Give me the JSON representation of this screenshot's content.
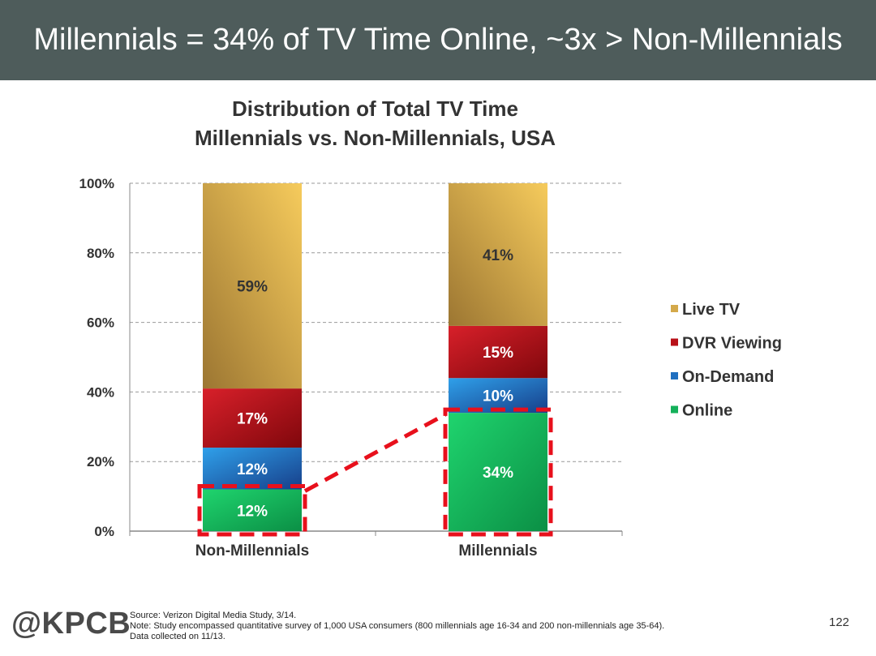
{
  "slide": {
    "title": "Millennials = 34% of TV Time Online, ~3x > Non-Millennials",
    "page_number": "122"
  },
  "chart_data": {
    "type": "bar",
    "stacked": true,
    "title": "Distribution of Total TV Time",
    "subtitle": "Millennials vs. Non-Millennials, USA",
    "categories": [
      "Non-Millennials",
      "Millennials"
    ],
    "series": [
      {
        "name": "Online",
        "values": [
          12,
          34
        ],
        "labels": [
          "12%",
          "34%"
        ],
        "color": "#14b05a"
      },
      {
        "name": "On-Demand",
        "values": [
          12,
          10
        ],
        "labels": [
          "12%",
          "10%"
        ],
        "color": "#1f6fc0"
      },
      {
        "name": "DVR Viewing",
        "values": [
          17,
          15
        ],
        "labels": [
          "17%",
          "15%"
        ],
        "color": "#b81018"
      },
      {
        "name": "Live TV",
        "values": [
          59,
          41
        ],
        "labels": [
          "59%",
          "41%"
        ],
        "color": "#d4a94a"
      }
    ],
    "ylim": [
      0,
      100
    ],
    "yticks": [
      "0%",
      "20%",
      "40%",
      "60%",
      "80%",
      "100%"
    ],
    "grid": true,
    "legend_position": "right",
    "highlight": {
      "series": "Online",
      "style": "red dashed outline with connecting dashed line",
      "color": "#e8101c"
    }
  },
  "footer": {
    "logo": "@KPCB",
    "notes": [
      "Source: Verizon Digital Media Study, 3/14.",
      "Note: Study encompassed quantitative survey of 1,000 USA consumers (800 millennials age 16-34 and 200 non-millennials age 35-64).",
      "Data collected on 11/13."
    ]
  }
}
